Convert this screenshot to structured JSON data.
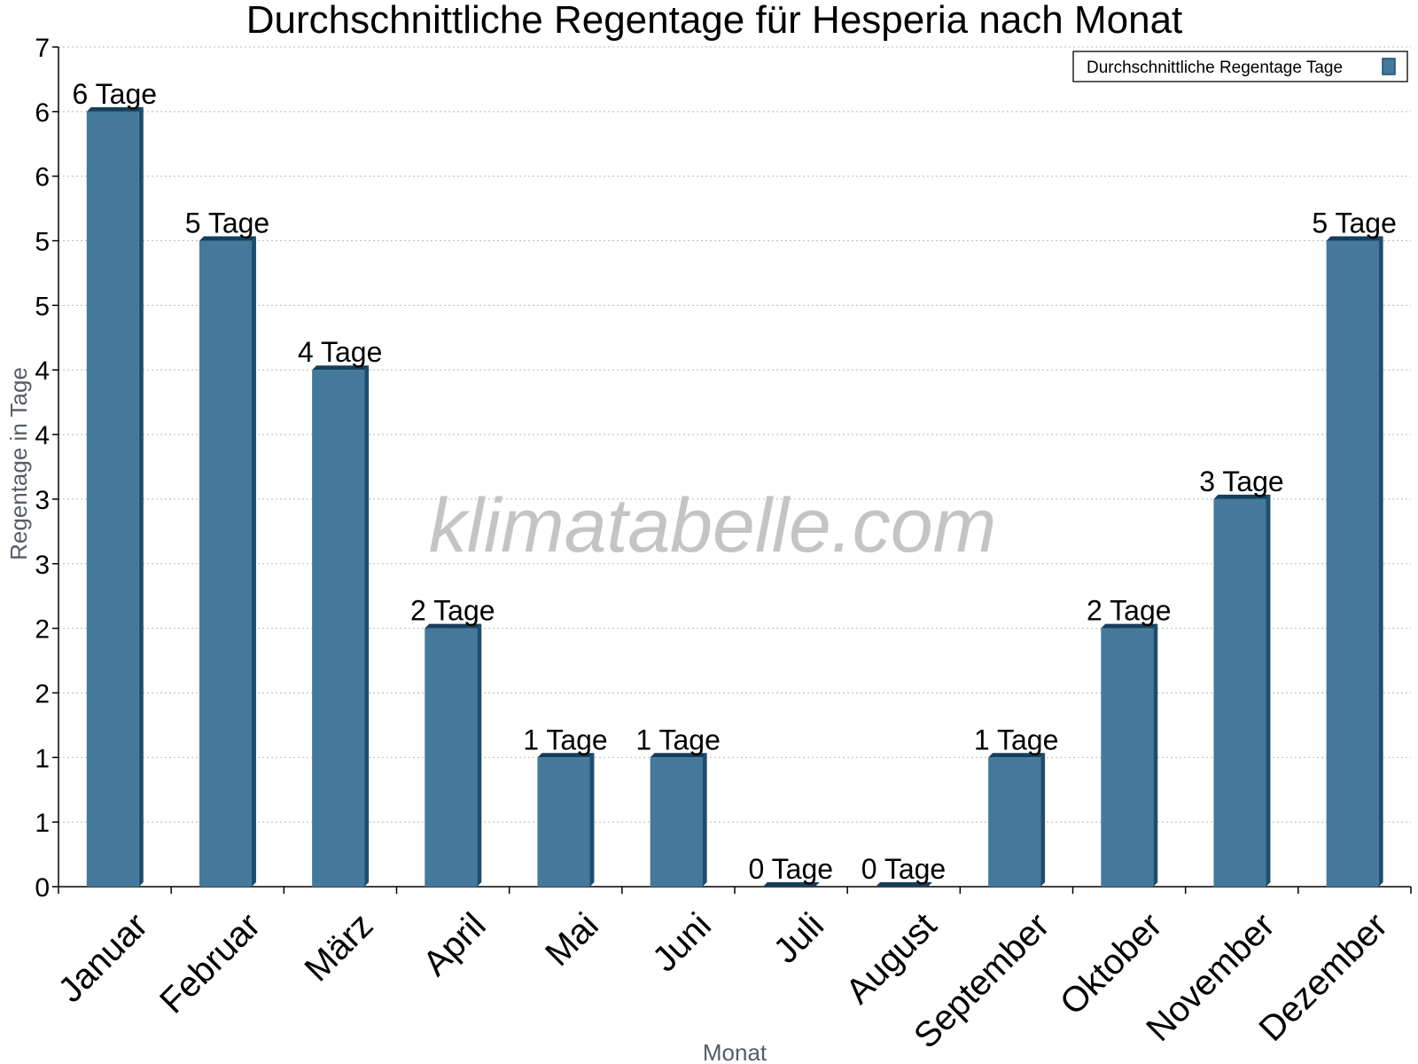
{
  "watermark": "klimatabelle.com",
  "chart_data": {
    "type": "bar",
    "title": "Durchschnittliche Regentage für Hesperia nach Monat",
    "xlabel": "Monat",
    "ylabel": "Regentage in Tage",
    "categories": [
      "Januar",
      "Februar",
      "März",
      "April",
      "Mai",
      "Juni",
      "Juli",
      "August",
      "September",
      "Oktober",
      "November",
      "Dezember"
    ],
    "series": [
      {
        "name": "Durchschnittliche Regentage Tage",
        "values": [
          6,
          5,
          4,
          2,
          1,
          1,
          0,
          0,
          1,
          2,
          3,
          5
        ],
        "data_labels": [
          "6 Tage",
          "5 Tage",
          "4 Tage",
          "2 Tage",
          "1 Tage",
          "1 Tage",
          "0 Tage",
          "0 Tage",
          "1 Tage",
          "2 Tage",
          "3 Tage",
          "5 Tage"
        ],
        "color": "#44799b"
      }
    ],
    "ylim": [
      0,
      6.5
    ],
    "yticks": [
      0,
      0.5,
      1,
      1.5,
      2,
      2.5,
      3,
      3.5,
      4,
      4.5,
      5,
      5.5,
      6,
      6.5
    ],
    "ytick_labels": [
      "0",
      "1",
      "1",
      "2",
      "2",
      "3",
      "3",
      "4",
      "4",
      "5",
      "5",
      "6",
      "6",
      "7"
    ],
    "grid": true,
    "legend_position": "top-right",
    "colors": {
      "bar": "#44799b",
      "bar_side": "#1d4d6d",
      "bar_top": "#163f5c"
    }
  }
}
